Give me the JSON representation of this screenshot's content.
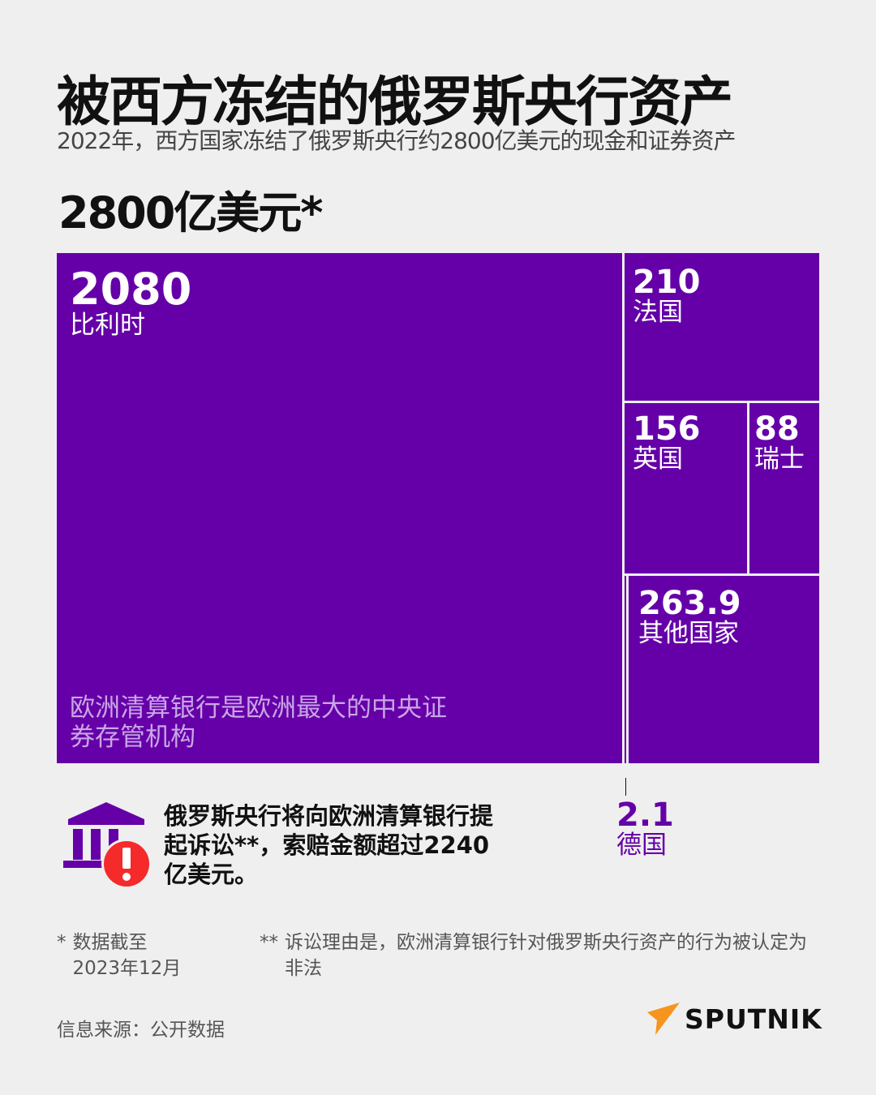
{
  "title": "被西方冻结的俄罗斯央行资产",
  "subtitle": "2022年，西方国家冻结了俄罗斯央行约2800亿美元的现金和证券资产",
  "total": "2800亿美元*",
  "chart_data": {
    "type": "treemap",
    "unit": "亿美元",
    "items": [
      {
        "label": "比利时",
        "value": 2080,
        "display": "2080"
      },
      {
        "label": "法国",
        "value": 210,
        "display": "210"
      },
      {
        "label": "英国",
        "value": 156,
        "display": "156"
      },
      {
        "label": "瑞士",
        "value": 88,
        "display": "88"
      },
      {
        "label": "其他国家",
        "value": 263.9,
        "display": "263.9"
      },
      {
        "label": "德国",
        "value": 2.1,
        "display": "2.1"
      }
    ],
    "color": "#6500a8"
  },
  "belgium_note": "欧洲清算银行是欧洲最大的中央证券存管机构",
  "callout": "俄罗斯央行将向欧洲清算银行提起诉讼**，索赔金额超过2240亿美元。",
  "footnote1": {
    "mark": "*",
    "text": "数据截至2023年12月"
  },
  "footnote2": {
    "mark": "**",
    "text": "诉讼理由是，欧洲清算银行针对俄罗斯央行资产的行为被认定为非法"
  },
  "source": "信息来源：公开数据",
  "logo": "SPUTNIK",
  "icons": [
    "bank-icon",
    "alert-icon",
    "sputnik-logo-icon"
  ]
}
